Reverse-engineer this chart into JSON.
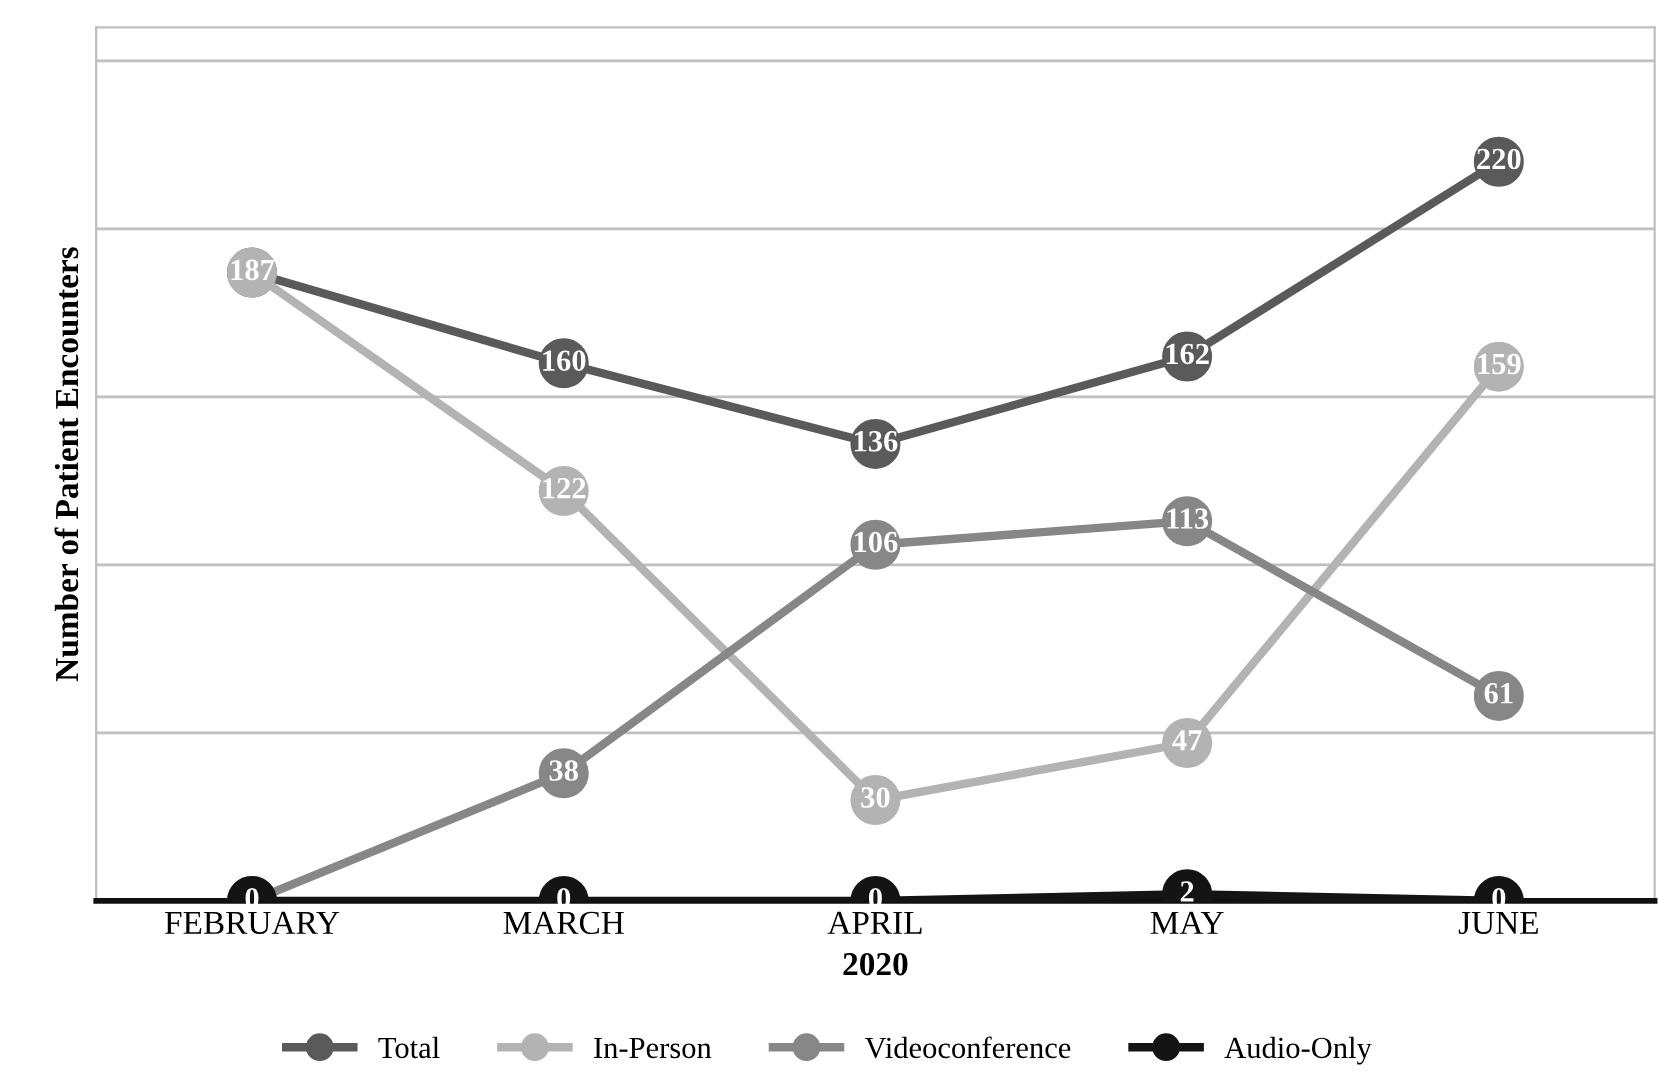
{
  "chart_data": {
    "type": "line",
    "xlabel": "2020",
    "ylabel": "Number of Patient Encounters",
    "categories": [
      "FEBRUARY",
      "MARCH",
      "APRIL",
      "MAY",
      "JUNE"
    ],
    "series": [
      {
        "name": "Total",
        "color": "#5a5a5a",
        "values": [
          187,
          160,
          136,
          162,
          220
        ],
        "value_labels": [
          null,
          "160",
          "136",
          "162",
          "220"
        ]
      },
      {
        "name": "In-Person",
        "color": "#b3b3b3",
        "values": [
          187,
          122,
          30,
          47,
          159
        ]
      },
      {
        "name": "Videoconference",
        "color": "#878787",
        "values": [
          0,
          38,
          106,
          113,
          61
        ],
        "value_labels": [
          null,
          "38",
          "106",
          "113",
          "61"
        ]
      },
      {
        "name": "Audio-Only",
        "color": "#141414",
        "values": [
          0,
          0,
          0,
          2,
          0
        ]
      }
    ],
    "ylim": [
      0,
      260
    ],
    "yticks": [
      {
        "value": 0,
        "label": null
      },
      {
        "value": 50,
        "label": null
      },
      {
        "value": 100,
        "label": null
      },
      {
        "value": 150,
        "label": null
      },
      {
        "value": 200,
        "label": null
      },
      {
        "value": 250,
        "label": null
      }
    ],
    "tick_labels": "x",
    "grid": "y",
    "legend": "bottom",
    "marker": "circle",
    "line_style": "solid",
    "data_labels": true
  }
}
